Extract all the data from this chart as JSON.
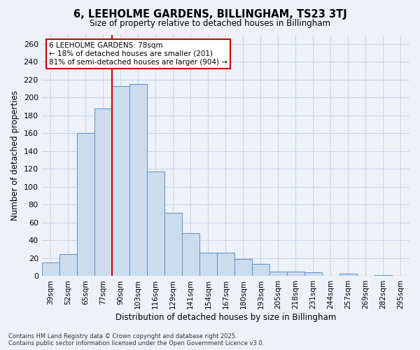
{
  "title": "6, LEEHOLME GARDENS, BILLINGHAM, TS23 3TJ",
  "subtitle": "Size of property relative to detached houses in Billingham",
  "xlabel": "Distribution of detached houses by size in Billingham",
  "ylabel": "Number of detached properties",
  "categories": [
    "39sqm",
    "52sqm",
    "65sqm",
    "77sqm",
    "90sqm",
    "103sqm",
    "116sqm",
    "129sqm",
    "141sqm",
    "154sqm",
    "167sqm",
    "180sqm",
    "193sqm",
    "205sqm",
    "218sqm",
    "231sqm",
    "244sqm",
    "257sqm",
    "269sqm",
    "282sqm",
    "295sqm"
  ],
  "values": [
    15,
    25,
    160,
    188,
    213,
    215,
    117,
    71,
    48,
    26,
    26,
    19,
    14,
    5,
    5,
    4,
    0,
    3,
    0,
    1,
    0
  ],
  "bar_color": "#ccdcef",
  "bar_edge_color": "#6699cc",
  "grid_color": "#c8d4e8",
  "annotation_text": "6 LEEHOLME GARDENS: 78sqm\n← 18% of detached houses are smaller (201)\n81% of semi-detached houses are larger (904) →",
  "annotation_box_color": "#ffffff",
  "annotation_box_edge": "#cc0000",
  "vline_color": "#cc0000",
  "vline_bar_index": 3,
  "ylim": [
    0,
    270
  ],
  "yticks": [
    0,
    20,
    40,
    60,
    80,
    100,
    120,
    140,
    160,
    180,
    200,
    220,
    240,
    260
  ],
  "footer": "Contains HM Land Registry data © Crown copyright and database right 2025.\nContains public sector information licensed under the Open Government Licence v3.0.",
  "bg_color": "#eef2f8",
  "axes_bg_color": "#eef2f8"
}
